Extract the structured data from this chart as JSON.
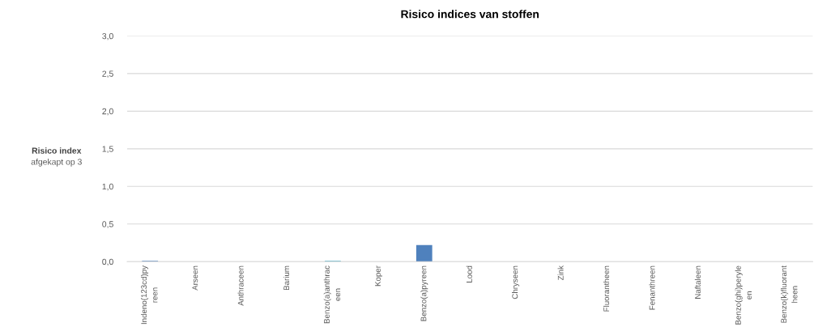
{
  "chart_data": {
    "type": "bar",
    "title": "Risico indices van stoffen",
    "ylabel": "Risico index",
    "annotations": [
      "afgekapt op 3"
    ],
    "categories": [
      "Indeno(123cd)py\nreen",
      "Arseen",
      "Anthraceen",
      "Barium",
      "Benzo(a)anthrac\neen",
      "Koper",
      "Benzo(a)pyreen",
      "Lood",
      "Chryseen",
      "Zink",
      "Fluorantheen",
      "Fenanthreen",
      "Naftaleen",
      "Benzo(ghi)peryle\nen",
      "Benzo(k)fluorant\nheen"
    ],
    "values": [
      0.01,
      0,
      0,
      0,
      0.01,
      0,
      0.22,
      0,
      0,
      0,
      0,
      0,
      0,
      0,
      0
    ],
    "colors": [
      "#4f81bd",
      "#c0504d",
      "#9bbb59",
      "#8064a2",
      "#4bacc6",
      "#f79646",
      "#4f81bd",
      "#c0504d",
      "#9bbb59",
      "#8064a2",
      "#4bacc6",
      "#f79646",
      "#8064a2",
      "#c0504d",
      "#9bbb59"
    ],
    "ylim": [
      0,
      3
    ],
    "yticks": [
      {
        "value": 0,
        "label": "0,0"
      },
      {
        "value": 0.5,
        "label": "0,5"
      },
      {
        "value": 1,
        "label": "1,0"
      },
      {
        "value": 1.5,
        "label": "1,5"
      },
      {
        "value": 2,
        "label": "2,0"
      },
      {
        "value": 2.5,
        "label": "2,5"
      },
      {
        "value": 3,
        "label": "3,0"
      }
    ],
    "grid": "y",
    "legend": false
  }
}
